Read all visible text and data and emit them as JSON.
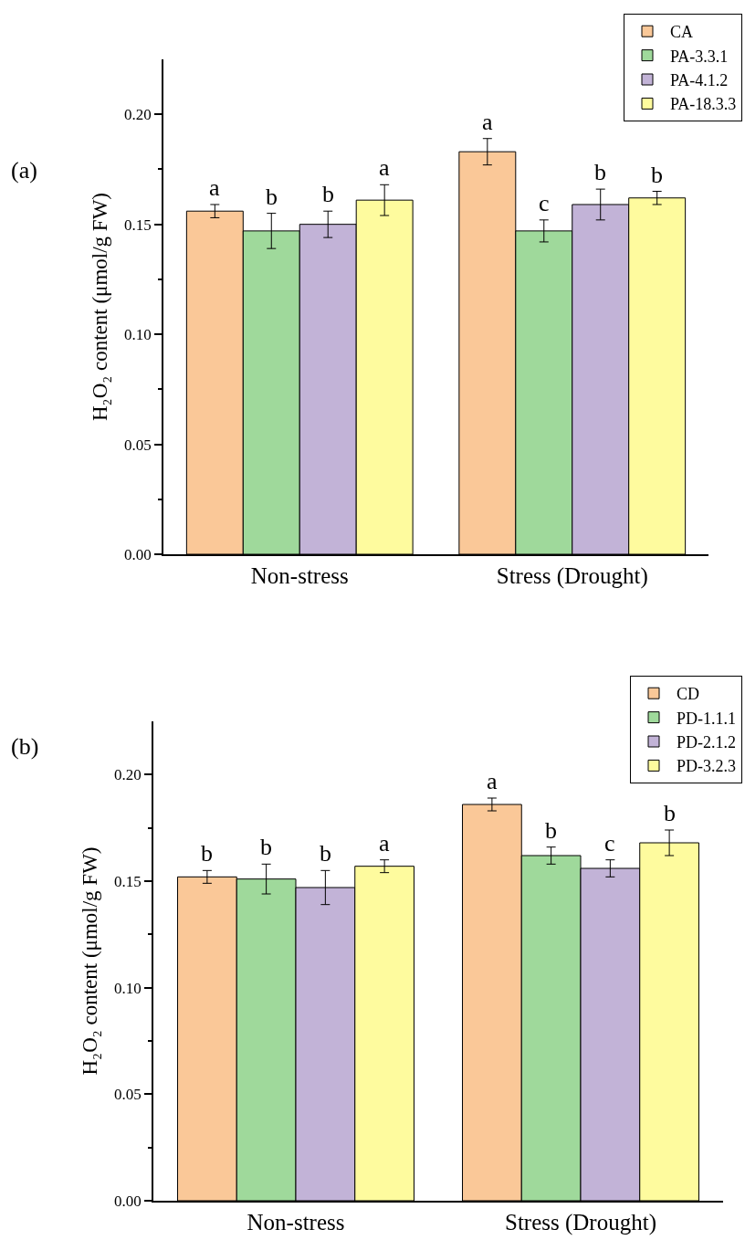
{
  "chart_data": [
    {
      "type": "bar",
      "ylabel": "H₂O₂ content (μmol/g FW)",
      "categories": [
        "Non-stress",
        "Stress (Drought)"
      ],
      "series": [
        {
          "name": "CA",
          "color": "#fac898",
          "values": [
            0.156,
            0.183
          ],
          "errors": [
            0.003,
            0.006
          ],
          "value_labels": [
            "a",
            "a"
          ]
        },
        {
          "name": "PA-3.3.1",
          "color": "#9fd99b",
          "values": [
            0.147,
            0.147
          ],
          "errors": [
            0.008,
            0.005
          ],
          "value_labels": [
            "b",
            "c"
          ]
        },
        {
          "name": "PA-4.1.2",
          "color": "#c2b3d7",
          "values": [
            0.15,
            0.159
          ],
          "errors": [
            0.006,
            0.007
          ],
          "value_labels": [
            "b",
            "b"
          ]
        },
        {
          "name": "PA-18.3.3",
          "color": "#fefb9e",
          "values": [
            0.161,
            0.162
          ],
          "errors": [
            0.007,
            0.003
          ],
          "value_labels": [
            "a",
            "b"
          ]
        }
      ],
      "ylim": [
        0,
        0.225
      ],
      "yticks": [
        {
          "value": 0,
          "label": "0.00"
        },
        {
          "value": 0.025,
          "label": null
        },
        {
          "value": 0.05,
          "label": "0.05"
        },
        {
          "value": 0.075,
          "label": null
        },
        {
          "value": 0.1,
          "label": "0.10"
        },
        {
          "value": 0.125,
          "label": null
        },
        {
          "value": 0.15,
          "label": "0.15"
        },
        {
          "value": 0.175,
          "label": null
        },
        {
          "value": 0.2,
          "label": "0.20"
        }
      ],
      "legend": "top right",
      "annotations": [
        "(a)"
      ]
    },
    {
      "type": "bar",
      "ylabel": "H₂O₂ content (μmol/g FW)",
      "categories": [
        "Non-stress",
        "Stress (Drought)"
      ],
      "series": [
        {
          "name": "CD",
          "color": "#fac898",
          "values": [
            0.152,
            0.186
          ],
          "errors": [
            0.003,
            0.003
          ],
          "value_labels": [
            "b",
            "a"
          ]
        },
        {
          "name": "PD-1.1.1",
          "color": "#9fd99b",
          "values": [
            0.151,
            0.162
          ],
          "errors": [
            0.007,
            0.004
          ],
          "value_labels": [
            "b",
            "b"
          ]
        },
        {
          "name": "PD-2.1.2",
          "color": "#c2b3d7",
          "values": [
            0.147,
            0.156
          ],
          "errors": [
            0.008,
            0.004
          ],
          "value_labels": [
            "b",
            "c"
          ]
        },
        {
          "name": "PD-3.2.3",
          "color": "#fefb9e",
          "values": [
            0.157,
            0.168
          ],
          "errors": [
            0.003,
            0.006
          ],
          "value_labels": [
            "a",
            "b"
          ]
        }
      ],
      "ylim": [
        0,
        0.225
      ],
      "yticks": [
        {
          "value": 0,
          "label": "0.00"
        },
        {
          "value": 0.025,
          "label": null
        },
        {
          "value": 0.05,
          "label": "0.05"
        },
        {
          "value": 0.075,
          "label": null
        },
        {
          "value": 0.1,
          "label": "0.10"
        },
        {
          "value": 0.125,
          "label": null
        },
        {
          "value": 0.15,
          "label": "0.15"
        },
        {
          "value": 0.175,
          "label": null
        },
        {
          "value": 0.2,
          "label": "0.20"
        }
      ],
      "legend": "top right",
      "annotations": [
        "(b)"
      ]
    }
  ]
}
